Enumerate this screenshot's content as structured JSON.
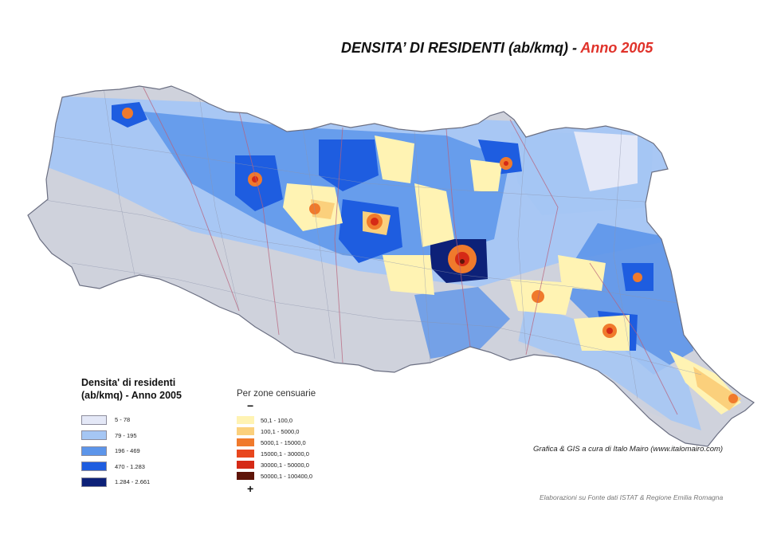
{
  "title": {
    "main": "DENSITA’ DI RESIDENTI (ab/kmq) - ",
    "year": "Anno 2005",
    "year_color": "#e0322a"
  },
  "legend_comuni": {
    "heading_line1": "Densita' di residenti",
    "heading_line2": "(ab/kmq) - Anno 2005",
    "classes": [
      {
        "label": "5 - 78",
        "color": "#e4e8f7"
      },
      {
        "label": "79 - 195",
        "color": "#a5c6f4"
      },
      {
        "label": "196 - 469",
        "color": "#5c95ea"
      },
      {
        "label": "470 - 1.283",
        "color": "#1e5de0"
      },
      {
        "label": "1.284 - 2.661",
        "color": "#0d2178"
      }
    ]
  },
  "legend_zone": {
    "heading": "Per zone censuarie",
    "low_marker": "−",
    "high_marker": "+",
    "classes": [
      {
        "label": "50,1 - 100,0",
        "color": "#fff3b3"
      },
      {
        "label": "100,1 - 5000,0",
        "color": "#fbd07c"
      },
      {
        "label": "5000,1 - 15000,0",
        "color": "#f07a2c"
      },
      {
        "label": "15000,1 - 30000,0",
        "color": "#e8471e"
      },
      {
        "label": "30000,1 - 50000,0",
        "color": "#d52a16"
      },
      {
        "label": "50000,1 - 100400,0",
        "color": "#5e1408"
      }
    ]
  },
  "credit": "Grafica & GIS a cura di Italo Mairo (www.italomairo.com)",
  "source": "Elaborazioni su Fonte dati ISTAT & Regione Emilia Romagna"
}
